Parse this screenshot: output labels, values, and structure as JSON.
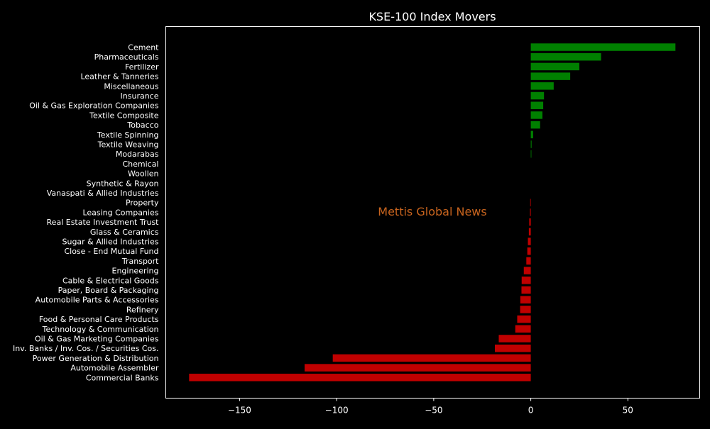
{
  "chart_data": {
    "type": "bar",
    "orientation": "horizontal",
    "title": "KSE-100 Index Movers",
    "watermark": "Mettis Global News",
    "xlabel": "",
    "ylabel": "",
    "xlim": [
      -188,
      87
    ],
    "xticks": [
      -150,
      -100,
      -50,
      0,
      50
    ],
    "xtick_labels": [
      "−150",
      "−100",
      "−50",
      "0",
      "50"
    ],
    "grid": false,
    "colors": {
      "background": "#000000",
      "text": "#ffffff",
      "positive": "#008000",
      "negative": "#c00000",
      "watermark": "#c8641e"
    },
    "categories": [
      "Cement",
      "Pharmaceuticals",
      "Fertilizer",
      "Leather & Tanneries",
      "Miscellaneous",
      "Insurance",
      "Oil & Gas Exploration Companies",
      "Textile Composite",
      "Tobacco",
      "Textile Spinning",
      "Textile Weaving",
      "Modarabas",
      "Chemical",
      "Woollen",
      "Synthetic & Rayon",
      "Vanaspati & Allied Industries",
      "Property",
      "Leasing Companies",
      "Real Estate Investment Trust",
      "Glass & Ceramics",
      "Sugar & Allied Industries",
      "Close - End Mutual Fund",
      "Transport",
      "Engineering",
      "Cable & Electrical Goods",
      "Paper, Board & Packaging",
      "Automobile Parts & Accessories",
      "Refinery",
      "Food & Personal Care Products",
      "Technology & Communication",
      "Oil & Gas Marketing Companies",
      "Inv. Banks / Inv. Cos. / Securities Cos.",
      "Power Generation & Distribution",
      "Automobile Assembler",
      "Commercial Banks"
    ],
    "values": [
      74.5,
      36.2,
      25.0,
      20.3,
      11.8,
      6.8,
      6.4,
      6.0,
      4.8,
      1.2,
      0.4,
      0.3,
      0,
      0,
      0,
      0,
      -0.3,
      -0.4,
      -0.8,
      -1.0,
      -1.5,
      -1.8,
      -2.3,
      -3.6,
      -4.7,
      -4.8,
      -5.4,
      -5.5,
      -7.0,
      -8.0,
      -16.5,
      -18.5,
      -102.0,
      -116.5,
      -176.0
    ]
  }
}
